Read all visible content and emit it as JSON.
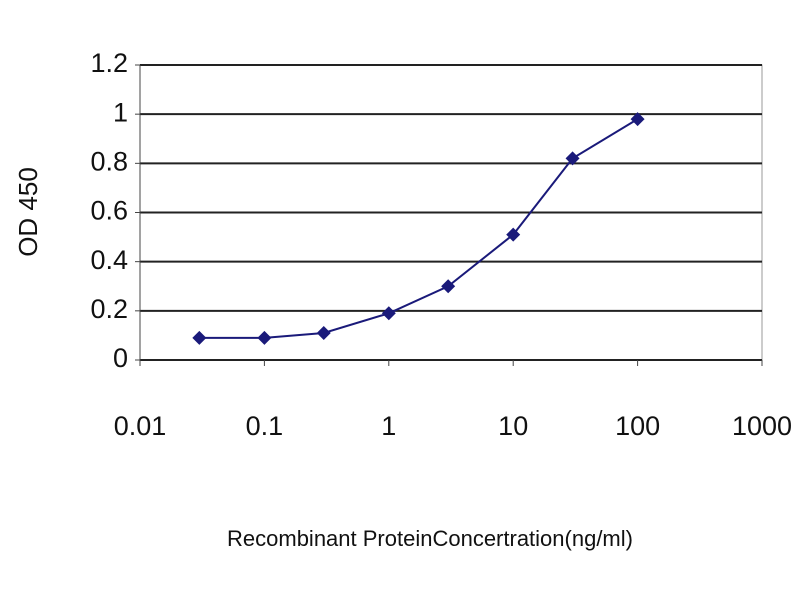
{
  "chart_data": {
    "type": "line",
    "x_label": "Recombinant ProteinConcertration(ng/ml)",
    "y_label": "OD 450",
    "x": [
      0.03,
      0.1,
      0.3,
      1,
      3,
      10,
      30,
      100
    ],
    "series": [
      {
        "name": "OD",
        "color": "#1a1a7a",
        "values": [
          0.09,
          0.09,
          0.11,
          0.19,
          0.3,
          0.51,
          0.82,
          0.98
        ]
      }
    ],
    "xscale": "log",
    "xlim": [
      0.01,
      1000
    ],
    "xticks": [
      0.01,
      0.1,
      1,
      10,
      100,
      1000
    ],
    "ylim": [
      0,
      1.2
    ],
    "yticks": [
      0,
      0.2,
      0.4,
      0.6,
      0.8,
      1,
      1.2
    ],
    "grid": true
  }
}
